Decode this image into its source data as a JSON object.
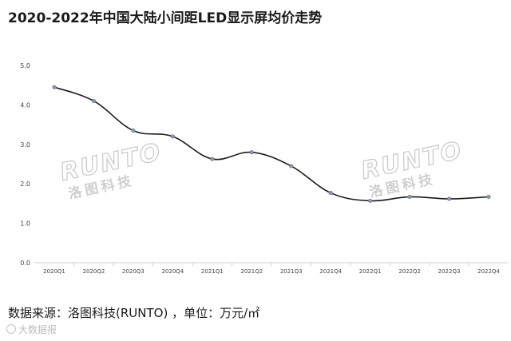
{
  "chart_data": {
    "type": "line",
    "title": "2020-2022年中国大陆小间距LED显示屏均价走势",
    "categories": [
      "2020Q1",
      "2020Q2",
      "2020Q3",
      "2020Q4",
      "2021Q1",
      "2021Q2",
      "2021Q3",
      "2021Q4",
      "2022Q1",
      "2022Q2",
      "2022Q3",
      "2022Q4"
    ],
    "values": [
      4.45,
      4.1,
      3.35,
      3.2,
      2.63,
      2.8,
      2.45,
      1.77,
      1.57,
      1.67,
      1.62,
      1.67
    ],
    "yticks": [
      "0.0",
      "1.0",
      "2.0",
      "3.0",
      "4.0",
      "5.0"
    ],
    "ylim": [
      0,
      5
    ],
    "grid": false,
    "legend": "none",
    "line_color": "#1a1a1a",
    "marker_color": "#8a9bb5"
  },
  "watermarks": [
    {
      "latin": "RUNTO",
      "cn": "洛图科技"
    },
    {
      "latin": "RUNTO",
      "cn": "洛图科技"
    }
  ],
  "footer": {
    "source": "数据来源：洛图科技(RUNTO) ，单位：万元/㎡",
    "credit": "大数据报"
  }
}
